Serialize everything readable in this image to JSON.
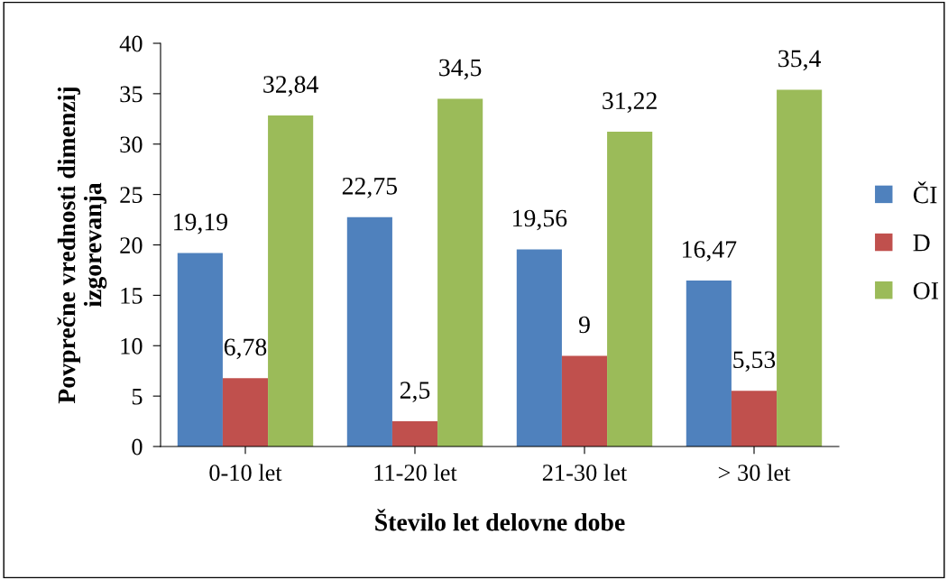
{
  "chart_data": {
    "type": "bar",
    "xlabel": "Število let delovne dobe",
    "ylabel": "Povprečne vrednosti dimenzij\nizgorevanja",
    "categories": [
      "0-10 let",
      "11-20 let",
      "21-30 let",
      "> 30 let"
    ],
    "series": [
      {
        "name": "ČI",
        "color": "#4f81bd",
        "values": [
          19.19,
          22.75,
          19.56,
          16.47
        ],
        "value_labels": [
          "19,19",
          "22,75",
          "19,56",
          "16,47"
        ]
      },
      {
        "name": "D",
        "color": "#c0504d",
        "values": [
          6.78,
          2.5,
          9,
          5.53
        ],
        "value_labels": [
          "6,78",
          "2,5",
          "9",
          "5,53"
        ]
      },
      {
        "name": "OI",
        "color": "#9bbb59",
        "values": [
          32.84,
          34.5,
          31.22,
          35.4
        ],
        "value_labels": [
          "32,84",
          "34,5",
          "31,22",
          "35,4"
        ]
      }
    ],
    "ylim": [
      0,
      40
    ],
    "yticks": [
      0,
      5,
      10,
      15,
      20,
      25,
      30,
      35,
      40
    ],
    "grid": false,
    "legend": "right"
  }
}
